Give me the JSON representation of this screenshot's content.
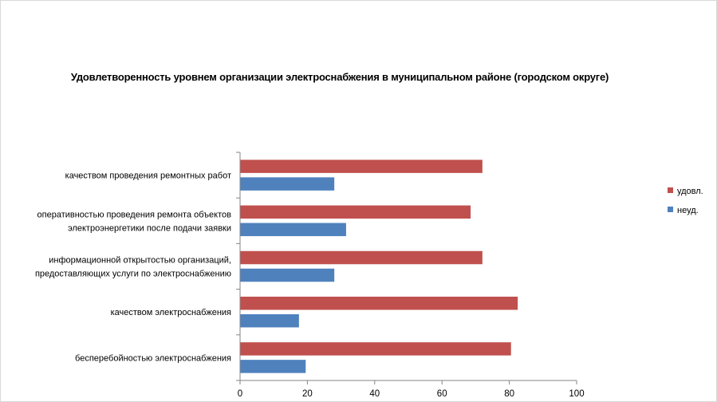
{
  "chart_data": {
    "type": "bar",
    "orientation": "horizontal",
    "title": "Удовлетворенность уровнем организации электроснабжения в муниципальном районе (городском округе)",
    "xlabel": "",
    "ylabel": "",
    "xlim": [
      0,
      100
    ],
    "x_ticks": [
      0,
      20,
      40,
      60,
      80,
      100
    ],
    "grid": false,
    "legend_position": "right",
    "categories": [
      [
        "качеством проведения ремонтных работ"
      ],
      [
        "оперативностью проведения ремонта объектов",
        "электроэнергетики после подачи заявки"
      ],
      [
        "информационной открытостью организаций,",
        "предоставляющих услуги по электроснабжению"
      ],
      [
        "качеством электроснабжения"
      ],
      [
        "бесперебойностью электроснабжения"
      ]
    ],
    "series": [
      {
        "name": "удовл.",
        "color": "#c0504d",
        "values": [
          72,
          68.5,
          72,
          82.5,
          80.5
        ]
      },
      {
        "name": "неуд.",
        "color": "#4f81bd",
        "values": [
          28,
          31.5,
          28,
          17.5,
          19.5
        ]
      }
    ]
  }
}
